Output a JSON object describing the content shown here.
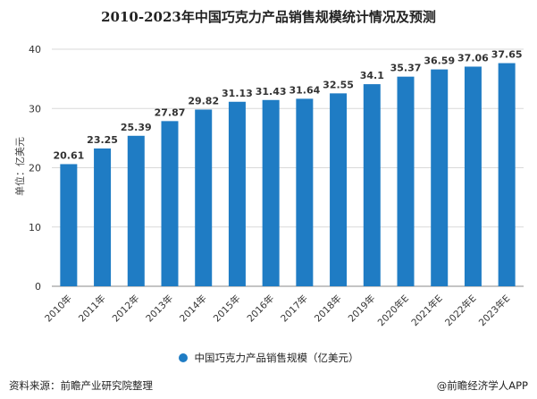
{
  "title": "2010-2023年中国巧克力产品销售规模统计情况及预测",
  "colors": {
    "bar": "#1f7cc4",
    "grid": "#d9d9d9",
    "axis": "#888888",
    "text": "#333333"
  },
  "chart_data": {
    "type": "bar",
    "title": "2010-2023年中国巧克力产品销售规模统计情况及预测",
    "xlabel": "",
    "ylabel": "单位：亿美元",
    "ylim": [
      0,
      40
    ],
    "yticks": [
      0,
      10,
      20,
      30,
      40
    ],
    "grid": true,
    "categories": [
      "2010年",
      "2011年",
      "2012年",
      "2013年",
      "2014年",
      "2015年",
      "2016年",
      "2017年",
      "2018年",
      "2019年",
      "2020年E",
      "2021年E",
      "2022年E",
      "2023年E"
    ],
    "series": [
      {
        "name": "中国巧克力产品销售规模（亿美元）",
        "values": [
          20.61,
          23.25,
          25.39,
          27.87,
          29.82,
          31.13,
          31.43,
          31.64,
          32.55,
          34.1,
          35.37,
          36.59,
          37.06,
          37.65
        ],
        "labels": [
          "20.61",
          "23.25",
          "25.39",
          "27.87",
          "29.82",
          "31.13",
          "31.43",
          "31.64",
          "32.55",
          "34.1",
          "35.37",
          "36.59",
          "37.06",
          "37.65"
        ]
      }
    ],
    "legend": "bottom-center"
  },
  "footer": {
    "source": "资料来源：前瞻产业研究院整理",
    "brand": "@前瞻经济学人APP"
  }
}
